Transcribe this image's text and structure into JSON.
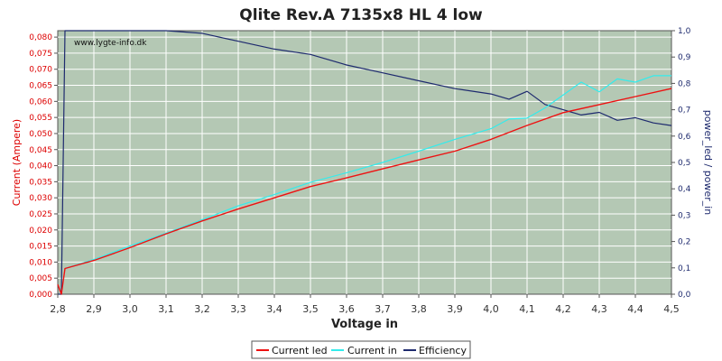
{
  "chart_data": {
    "type": "line",
    "title": "Qlite Rev.A 7135x8 HL 4 low",
    "xlabel": "Voltage in",
    "ylabel_left": "Current (Ampere)",
    "ylabel_right": "power_led / power_in",
    "watermark": "www.lygte-info.dk",
    "xlim": [
      2.8,
      4.5
    ],
    "ylim_left": [
      0,
      0.082
    ],
    "ylim_right": [
      0,
      1.0
    ],
    "x_ticks": [
      "2,8",
      "2,9",
      "3,0",
      "3,1",
      "3,2",
      "3,3",
      "3,4",
      "3,5",
      "3,6",
      "3,7",
      "3,8",
      "3,9",
      "4,0",
      "4,1",
      "4,2",
      "4,3",
      "4,4",
      "4,5"
    ],
    "y_left_ticks": [
      "0,000",
      "0,005",
      "0,010",
      "0,015",
      "0,020",
      "0,025",
      "0,030",
      "0,035",
      "0,040",
      "0,045",
      "0,050",
      "0,055",
      "0,060",
      "0,065",
      "0,070",
      "0,075",
      "0,080"
    ],
    "y_right_ticks": [
      "0,0",
      "0,1",
      "0,2",
      "0,3",
      "0,4",
      "0,5",
      "0,6",
      "0,7",
      "0,8",
      "0,9",
      "1,0"
    ],
    "grid": true,
    "legend_position": "bottom-center",
    "colors": {
      "background": "#b4c8b4",
      "current_led": "#ee1111",
      "current_in": "#33ecec",
      "efficiency": "#1e2a6e",
      "left_axis": "#dd0000",
      "right_axis": "#1e2a6e"
    },
    "series": [
      {
        "name": "Current led",
        "axis": "left",
        "x": [
          2.8,
          2.81,
          2.82,
          2.9,
          3.0,
          3.1,
          3.2,
          3.3,
          3.4,
          3.5,
          3.6,
          3.7,
          3.8,
          3.9,
          4.0,
          4.1,
          4.2,
          4.3,
          4.4,
          4.5
        ],
        "values": [
          0.003,
          0.0,
          0.008,
          0.0105,
          0.0145,
          0.0188,
          0.0228,
          0.0265,
          0.03,
          0.0335,
          0.0362,
          0.039,
          0.0418,
          0.0445,
          0.0482,
          0.0525,
          0.0565,
          0.059,
          0.0615,
          0.064
        ]
      },
      {
        "name": "Current in",
        "axis": "left",
        "x": [
          2.82,
          2.9,
          3.0,
          3.1,
          3.2,
          3.3,
          3.4,
          3.5,
          3.6,
          3.7,
          3.8,
          3.9,
          4.0,
          4.05,
          4.1,
          4.15,
          4.2,
          4.25,
          4.3,
          4.35,
          4.4,
          4.45,
          4.5
        ],
        "values": [
          0.008,
          0.0108,
          0.015,
          0.019,
          0.0232,
          0.0275,
          0.031,
          0.0348,
          0.0378,
          0.041,
          0.0445,
          0.0482,
          0.0515,
          0.0545,
          0.0548,
          0.058,
          0.062,
          0.066,
          0.063,
          0.067,
          0.066,
          0.068,
          0.068
        ]
      },
      {
        "name": "Efficiency",
        "axis": "right",
        "x": [
          2.8,
          2.81,
          2.82,
          2.85,
          2.9,
          3.0,
          3.1,
          3.2,
          3.3,
          3.4,
          3.5,
          3.6,
          3.7,
          3.8,
          3.9,
          4.0,
          4.05,
          4.1,
          4.15,
          4.2,
          4.25,
          4.3,
          4.35,
          4.4,
          4.45,
          4.5
        ],
        "values": [
          0.0,
          0.0,
          1.0,
          1.0,
          1.0,
          1.0,
          1.0,
          0.99,
          0.96,
          0.93,
          0.91,
          0.87,
          0.84,
          0.81,
          0.78,
          0.76,
          0.74,
          0.77,
          0.72,
          0.7,
          0.68,
          0.69,
          0.66,
          0.67,
          0.65,
          0.64
        ]
      }
    ]
  }
}
